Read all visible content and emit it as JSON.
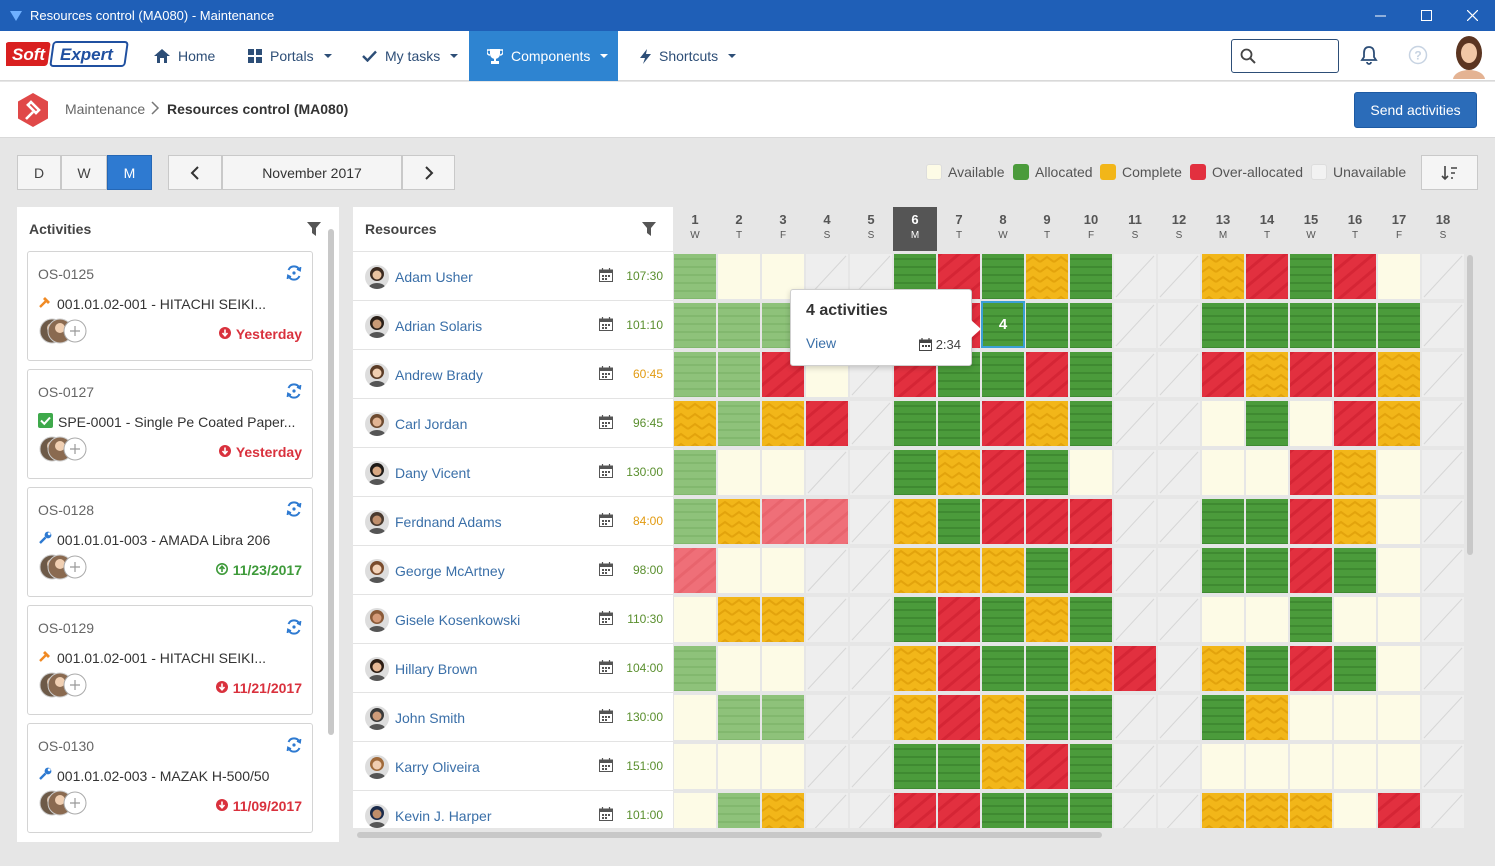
{
  "window": {
    "title": "Resources control (MA080) - Maintenance"
  },
  "nav": {
    "logo": "SoftExpert",
    "items": [
      {
        "label": "Home",
        "icon": "home-icon"
      },
      {
        "label": "Portals",
        "icon": "grid-icon"
      },
      {
        "label": "My tasks",
        "icon": "check-icon"
      },
      {
        "label": "Components",
        "icon": "trophy-icon",
        "active": true
      },
      {
        "label": "Shortcuts",
        "icon": "bolt-icon"
      }
    ]
  },
  "breadcrumb": {
    "root": "Maintenance",
    "current": "Resources control (MA080)"
  },
  "send_button": "Send activities",
  "toolbar": {
    "views": [
      {
        "label": "D"
      },
      {
        "label": "W"
      },
      {
        "label": "M",
        "active": true
      }
    ],
    "month": "November 2017"
  },
  "legend": [
    {
      "label": "Available",
      "color": "#fdfbe6"
    },
    {
      "label": "Allocated",
      "color": "#4b9b3b"
    },
    {
      "label": "Complete",
      "color": "#f2b619"
    },
    {
      "label": "Over-allocated",
      "color": "#e2303f"
    },
    {
      "label": "Unavailable",
      "color": "#eeeeee"
    }
  ],
  "activities": {
    "header": "Activities",
    "items": [
      {
        "code": "OS-0125",
        "desc": "001.01.02-001 - HITACHI SEIKI...",
        "icon": "hammer-icon",
        "date": "Yesterday",
        "status": "overdue"
      },
      {
        "code": "OS-0127",
        "desc": "SPE-0001 - Single Pe Coated Paper...",
        "icon": "checkbox-icon",
        "date": "Yesterday",
        "status": "overdue"
      },
      {
        "code": "OS-0128",
        "desc": "001.01.01-003 - AMADA Libra 206",
        "icon": "wrench-icon",
        "date": "11/23/2017",
        "status": "ontime"
      },
      {
        "code": "OS-0129",
        "desc": "001.01.02-001 - HITACHI SEIKI...",
        "icon": "hammer-icon",
        "date": "11/21/2017",
        "status": "overdue"
      },
      {
        "code": "OS-0130",
        "desc": "001.01.02-003 - MAZAK H-500/50",
        "icon": "wrench-icon",
        "date": "11/09/2017",
        "status": "overdue"
      }
    ]
  },
  "resources": {
    "header": "Resources",
    "rows": [
      {
        "name": "Adam Usher",
        "hours": "107:30",
        "hours_color": "#5a8f2e"
      },
      {
        "name": "Adrian Solaris",
        "hours": "101:10",
        "hours_color": "#5a8f2e"
      },
      {
        "name": "Andrew Brady",
        "hours": "60:45",
        "hours_color": "#e29b12"
      },
      {
        "name": "Carl Jordan",
        "hours": "96:45",
        "hours_color": "#5a8f2e"
      },
      {
        "name": "Dany Vicent",
        "hours": "130:00",
        "hours_color": "#5a8f2e"
      },
      {
        "name": "Ferdnand Adams",
        "hours": "84:00",
        "hours_color": "#e29b12"
      },
      {
        "name": "George McArtney",
        "hours": "98:00",
        "hours_color": "#5a8f2e"
      },
      {
        "name": "Gisele Kosenkowski",
        "hours": "110:30",
        "hours_color": "#5a8f2e"
      },
      {
        "name": "Hillary Brown",
        "hours": "104:00",
        "hours_color": "#5a8f2e"
      },
      {
        "name": "John Smith",
        "hours": "130:00",
        "hours_color": "#5a8f2e"
      },
      {
        "name": "Karry Oliveira",
        "hours": "151:00",
        "hours_color": "#5a8f2e"
      },
      {
        "name": "Kevin J. Harper",
        "hours": "101:00",
        "hours_color": "#5a8f2e"
      }
    ]
  },
  "days": [
    {
      "num": "1",
      "wd": "W"
    },
    {
      "num": "2",
      "wd": "T"
    },
    {
      "num": "3",
      "wd": "F"
    },
    {
      "num": "4",
      "wd": "S"
    },
    {
      "num": "5",
      "wd": "S"
    },
    {
      "num": "6",
      "wd": "M",
      "today": true
    },
    {
      "num": "7",
      "wd": "T"
    },
    {
      "num": "8",
      "wd": "W"
    },
    {
      "num": "9",
      "wd": "T"
    },
    {
      "num": "10",
      "wd": "F"
    },
    {
      "num": "11",
      "wd": "S"
    },
    {
      "num": "12",
      "wd": "S"
    },
    {
      "num": "13",
      "wd": "M"
    },
    {
      "num": "14",
      "wd": "T"
    },
    {
      "num": "15",
      "wd": "W"
    },
    {
      "num": "16",
      "wd": "T"
    },
    {
      "num": "17",
      "wd": "F"
    },
    {
      "num": "18",
      "wd": "S"
    }
  ],
  "grid_legend_codes": "A=Available, L=Allocated, C=Complete, O=Over-allocated, U=Unavailable; lower-case l/o = light (past) variant",
  "grid": [
    "lAAUUL OLCLUUCOLOAU",
    "lllAUOOLLLUULLLLLU",
    "llOAUOLLOLUUOCOOCU",
    "ClCOULLOCLUUALAOCU",
    "lAAUULCOLAUUAAOCAU",
    "lCooUCLOOOUULLOCAU",
    "oAAUUCCCLOUULLOLAU",
    "ACCUULOLCLUUAALAAU",
    "lAAUUCOLLCOUCLOLAU",
    "AllUUCOCLLUULCAAAU",
    "AAAUULLCOLUUAAAAAU",
    "AlCUUOOLLLUUCCCAOU"
  ],
  "popup": {
    "title": "4 activities",
    "link": "View",
    "time": "2:34",
    "selected_count": "4"
  }
}
